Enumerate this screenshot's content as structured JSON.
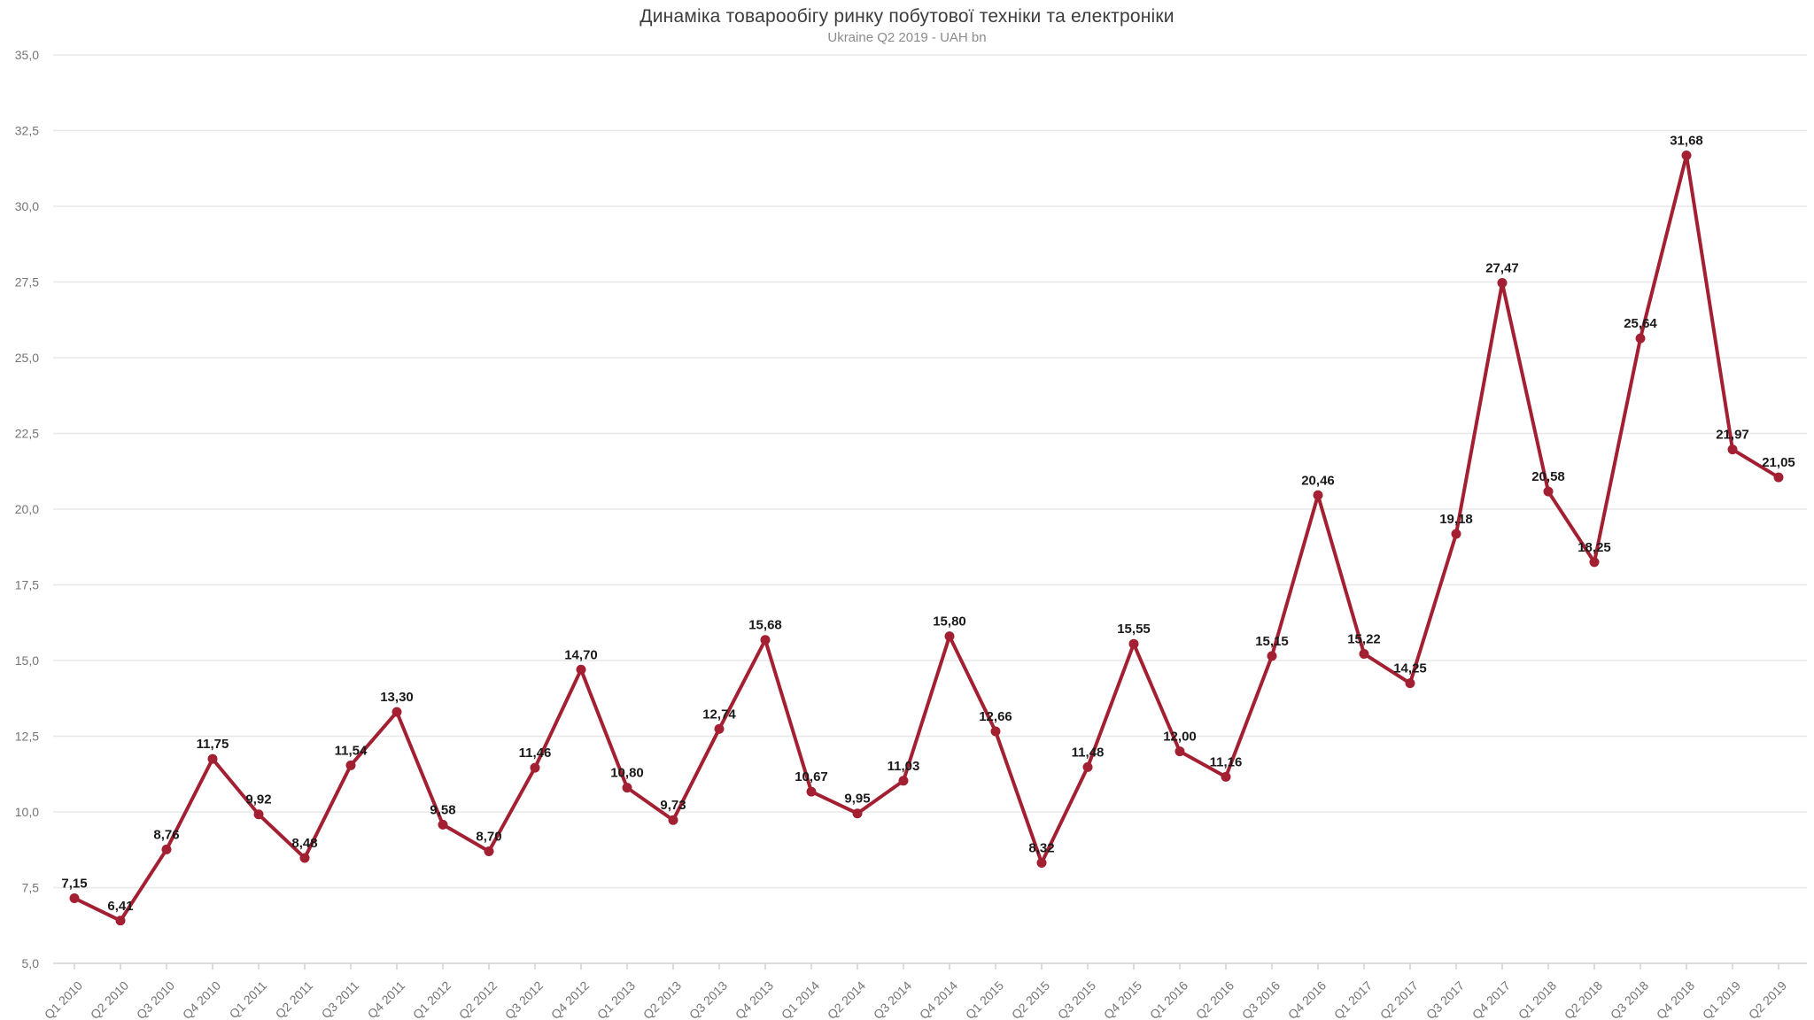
{
  "page": {
    "background": "#ffffff"
  },
  "chart_data": {
    "type": "line",
    "title": "Динаміка товарообігу ринку побутової техніки та електроніки",
    "subtitle": "Ukraine Q2 2019 - UAH bn",
    "xlabel": "",
    "ylabel": "",
    "ylim": [
      5,
      35
    ],
    "ytick_step": 2.5,
    "decimal_separator": ",",
    "grid": true,
    "legend_position": "none",
    "colors": {
      "line": "#a32033",
      "marker": "#a32033",
      "data_label": "#1a1a1a",
      "axis_text": "#757575",
      "grid_line": "#e8e8e8",
      "axis_line": "#d0d0d0"
    },
    "categories": [
      "Q1 2010",
      "Q2 2010",
      "Q3 2010",
      "Q4 2010",
      "Q1 2011",
      "Q2 2011",
      "Q3 2011",
      "Q4 2011",
      "Q1 2012",
      "Q2 2012",
      "Q3 2012",
      "Q4 2012",
      "Q1 2013",
      "Q2 2013",
      "Q3 2013",
      "Q4 2013",
      "Q1 2014",
      "Q2 2014",
      "Q3 2014",
      "Q4 2014",
      "Q1 2015",
      "Q2 2015",
      "Q3 2015",
      "Q4 2015",
      "Q1 2016",
      "Q2 2016",
      "Q3 2016",
      "Q4 2016",
      "Q1 2017",
      "Q2 2017",
      "Q3 2017",
      "Q4 2017",
      "Q1 2018",
      "Q2 2018",
      "Q3 2018",
      "Q4 2018",
      "Q1 2019",
      "Q2 2019"
    ],
    "values": [
      7.15,
      6.41,
      8.76,
      11.75,
      9.92,
      8.48,
      11.54,
      13.3,
      9.58,
      8.7,
      11.46,
      14.7,
      10.8,
      9.73,
      12.74,
      15.68,
      10.67,
      9.95,
      11.03,
      15.8,
      12.66,
      8.32,
      11.48,
      15.55,
      12.0,
      11.16,
      15.15,
      20.46,
      15.22,
      14.25,
      19.18,
      27.47,
      20.58,
      18.25,
      25.64,
      31.68,
      21.97,
      21.05
    ],
    "ytick_labels": [
      "35,0",
      "32,5",
      "30,0",
      "27,5",
      "25,0",
      "22,5",
      "20,0",
      "17,5",
      "15,0",
      "12,5",
      "10,0",
      "7,5",
      "5,0"
    ]
  }
}
